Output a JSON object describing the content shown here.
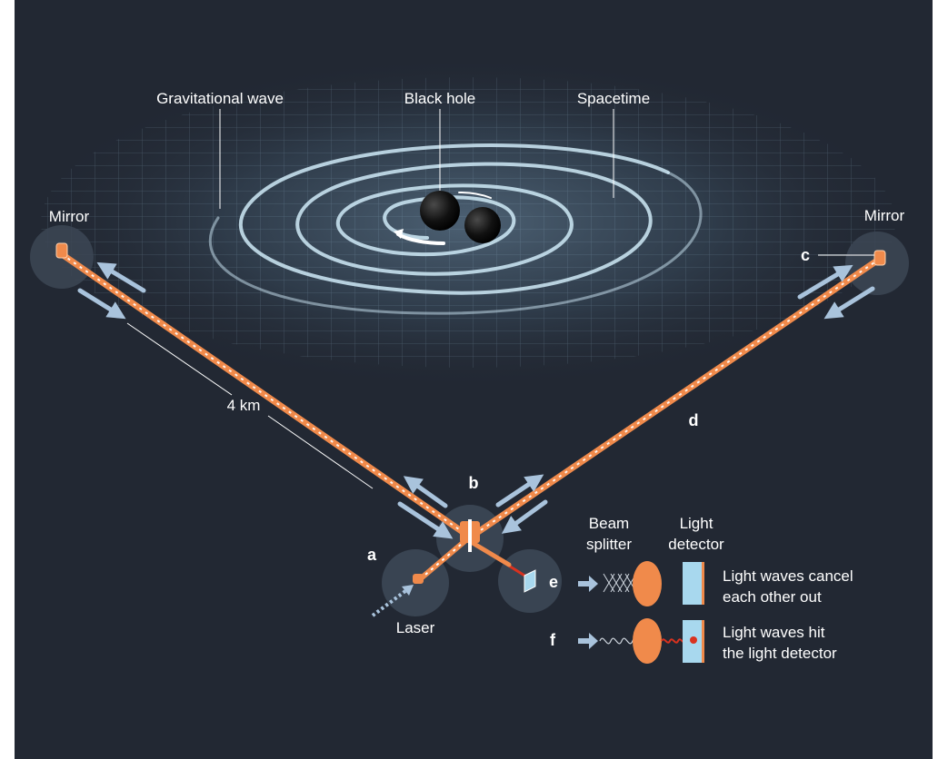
{
  "labels": {
    "gravitational_wave": "Gravitational wave",
    "black_hole": "Black hole",
    "spacetime": "Spacetime",
    "mirror_left": "Mirror",
    "mirror_right": "Mirror",
    "distance": "4 km",
    "laser": "Laser",
    "beam_splitter_line1": "Beam",
    "beam_splitter_line2": "splitter",
    "light_detector_line1": "Light",
    "light_detector_line2": "detector",
    "cancel_line1": "Light waves cancel",
    "cancel_line2": "each other out",
    "hit_line1": "Light waves hit",
    "hit_line2": "the light detector"
  },
  "letters": {
    "a": "a",
    "b": "b",
    "c": "c",
    "d": "d",
    "e": "e",
    "f": "f"
  },
  "colors": {
    "background": "#222833",
    "laser": "#f08a4b",
    "wave": "#bfe3f5",
    "arrow": "#a9c3dc",
    "detector": "#a8d8ee",
    "signal": "#d9321f"
  }
}
